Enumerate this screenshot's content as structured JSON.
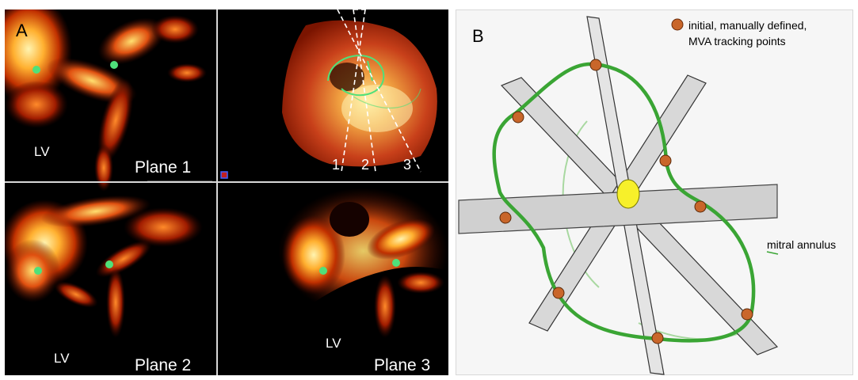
{
  "panel_a": {
    "panel_label": "A",
    "quadrants": [
      {
        "chamber_label": "LV",
        "plane_label": "Plane 1"
      },
      {
        "plane_numbers": [
          "1",
          "2",
          "3"
        ]
      },
      {
        "chamber_label": "LV",
        "plane_label": "Plane 2"
      },
      {
        "chamber_label": "LV",
        "plane_label": "Plane 3"
      }
    ]
  },
  "panel_b": {
    "panel_label": "B",
    "legend_text_line1": "initial, manually defined,",
    "legend_text_line2": "MVA tracking points",
    "annulus_label": "mitral annulus"
  },
  "colors": {
    "echo_dark": "#000000",
    "echo_red": "#8c1800",
    "echo_orange": "#e0641a",
    "echo_yellow": "#fff0a0",
    "tracking_point": "#4fe07a",
    "annulus_green": "#3aa534",
    "point_fill": "#c9662a",
    "plane_gray": "#d2d2d2",
    "center_yellow": "#f7f02a"
  }
}
